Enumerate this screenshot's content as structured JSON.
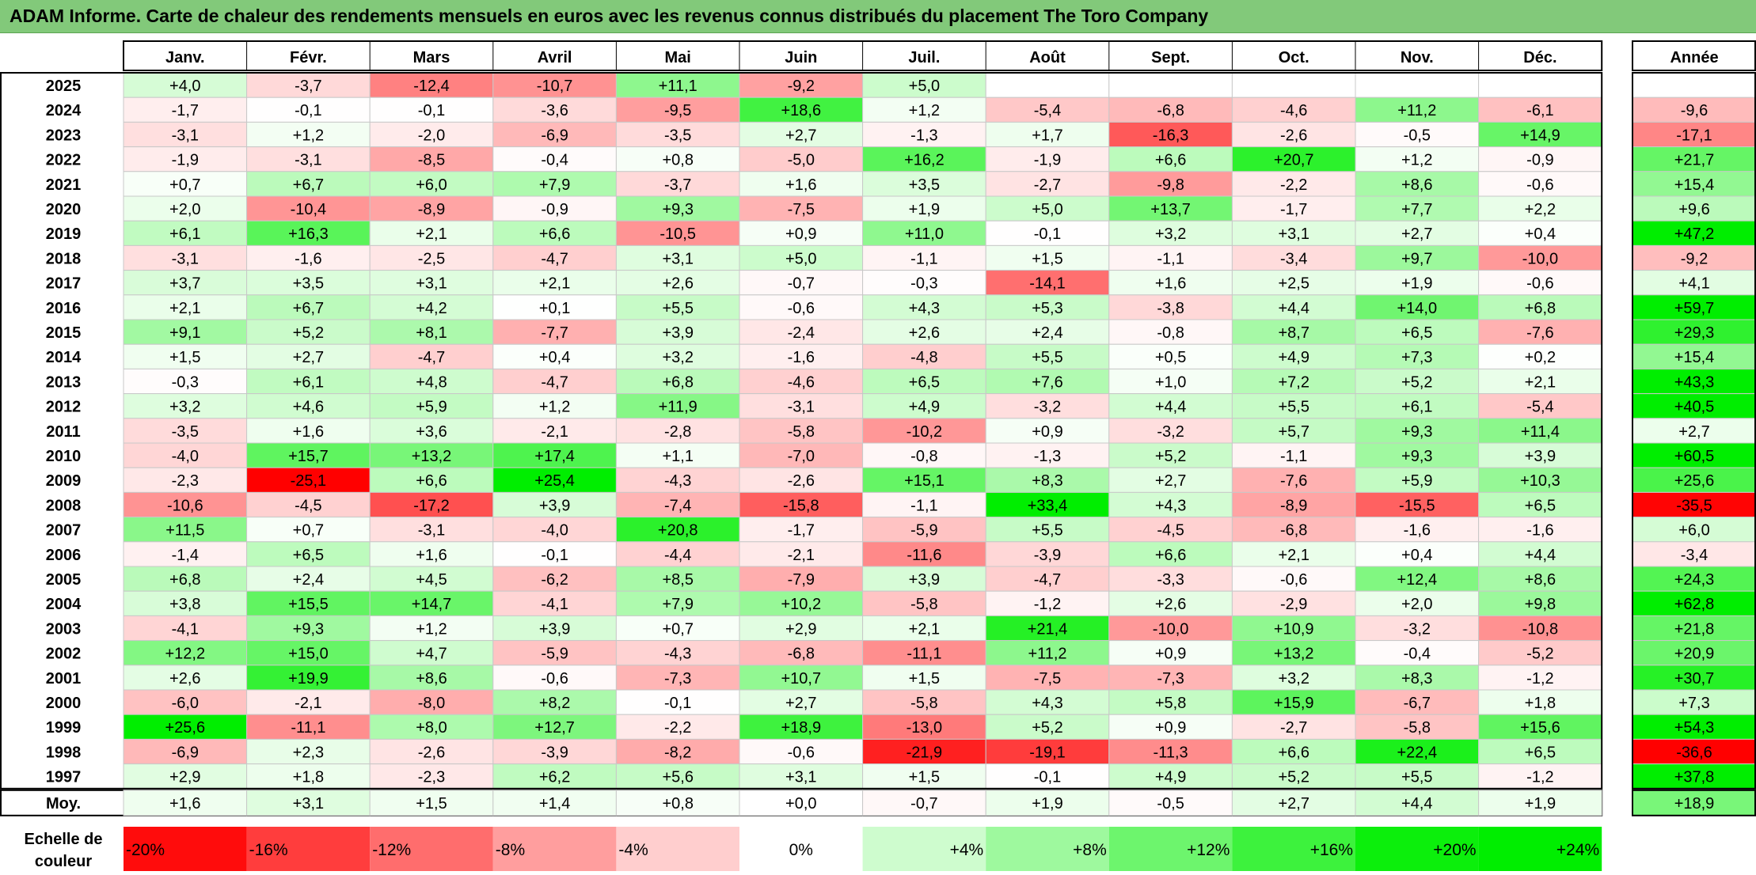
{
  "title": "ADAM Informe. Carte de chaleur des rendements mensuels en euros avec les revenus connus distribués du placement The Toro Company",
  "chart_data": {
    "type": "heatmap",
    "title": "ADAM Informe. Carte de chaleur des rendements mensuels en euros avec les revenus connus distribués du placement The Toro Company",
    "columns": [
      "Janv.",
      "Févr.",
      "Mars",
      "Avril",
      "Mai",
      "Juin",
      "Juil.",
      "Août",
      "Sept.",
      "Oct.",
      "Nov.",
      "Déc."
    ],
    "annual_header": "Année",
    "rows": [
      {
        "year": "2025",
        "values": [
          "+4,0",
          "-3,7",
          "-12,4",
          "-10,7",
          "+11,1",
          "-9,2",
          "+5,0",
          "",
          "",
          "",
          "",
          ""
        ],
        "annual": ""
      },
      {
        "year": "2024",
        "values": [
          "-1,7",
          "-0,1",
          "-0,1",
          "-3,6",
          "-9,5",
          "+18,6",
          "+1,2",
          "-5,4",
          "-6,8",
          "-4,6",
          "+11,2",
          "-6,1"
        ],
        "annual": "-9,6"
      },
      {
        "year": "2023",
        "values": [
          "-3,1",
          "+1,2",
          "-2,0",
          "-6,9",
          "-3,5",
          "+2,7",
          "-1,3",
          "+1,7",
          "-16,3",
          "-2,6",
          "-0,5",
          "+14,9"
        ],
        "annual": "-17,1"
      },
      {
        "year": "2022",
        "values": [
          "-1,9",
          "-3,1",
          "-8,5",
          "-0,4",
          "+0,8",
          "-5,0",
          "+16,2",
          "-1,9",
          "+6,6",
          "+20,7",
          "+1,2",
          "-0,9"
        ],
        "annual": "+21,7"
      },
      {
        "year": "2021",
        "values": [
          "+0,7",
          "+6,7",
          "+6,0",
          "+7,9",
          "-3,7",
          "+1,6",
          "+3,5",
          "-2,7",
          "-9,8",
          "-2,2",
          "+8,6",
          "-0,6"
        ],
        "annual": "+15,4"
      },
      {
        "year": "2020",
        "values": [
          "+2,0",
          "-10,4",
          "-8,9",
          "-0,9",
          "+9,3",
          "-7,5",
          "+1,9",
          "+5,0",
          "+13,7",
          "-1,7",
          "+7,7",
          "+2,2"
        ],
        "annual": "+9,6"
      },
      {
        "year": "2019",
        "values": [
          "+6,1",
          "+16,3",
          "+2,1",
          "+6,6",
          "-10,5",
          "+0,9",
          "+11,0",
          "-0,1",
          "+3,2",
          "+3,1",
          "+2,7",
          "+0,4"
        ],
        "annual": "+47,2"
      },
      {
        "year": "2018",
        "values": [
          "-3,1",
          "-1,6",
          "-2,5",
          "-4,7",
          "+3,1",
          "+5,0",
          "-1,1",
          "+1,5",
          "-1,1",
          "-3,4",
          "+9,7",
          "-10,0"
        ],
        "annual": "-9,2"
      },
      {
        "year": "2017",
        "values": [
          "+3,7",
          "+3,5",
          "+3,1",
          "+2,1",
          "+2,6",
          "-0,7",
          "-0,3",
          "-14,1",
          "+1,6",
          "+2,5",
          "+1,9",
          "-0,6"
        ],
        "annual": "+4,1"
      },
      {
        "year": "2016",
        "values": [
          "+2,1",
          "+6,7",
          "+4,2",
          "+0,1",
          "+5,5",
          "-0,6",
          "+4,3",
          "+5,3",
          "-3,8",
          "+4,4",
          "+14,0",
          "+6,8"
        ],
        "annual": "+59,7"
      },
      {
        "year": "2015",
        "values": [
          "+9,1",
          "+5,2",
          "+8,1",
          "-7,7",
          "+3,9",
          "-2,4",
          "+2,6",
          "+2,4",
          "-0,8",
          "+8,7",
          "+6,5",
          "-7,6"
        ],
        "annual": "+29,3"
      },
      {
        "year": "2014",
        "values": [
          "+1,5",
          "+2,7",
          "-4,7",
          "+0,4",
          "+3,2",
          "-1,6",
          "-4,8",
          "+5,5",
          "+0,5",
          "+4,9",
          "+7,3",
          "+0,2"
        ],
        "annual": "+15,4"
      },
      {
        "year": "2013",
        "values": [
          "-0,3",
          "+6,1",
          "+4,8",
          "-4,7",
          "+6,8",
          "-4,6",
          "+6,5",
          "+7,6",
          "+1,0",
          "+7,2",
          "+5,2",
          "+2,1"
        ],
        "annual": "+43,3"
      },
      {
        "year": "2012",
        "values": [
          "+3,2",
          "+4,6",
          "+5,9",
          "+1,2",
          "+11,9",
          "-3,1",
          "+4,9",
          "-3,2",
          "+4,4",
          "+5,5",
          "+6,1",
          "-5,4"
        ],
        "annual": "+40,5"
      },
      {
        "year": "2011",
        "values": [
          "-3,5",
          "+1,6",
          "+3,6",
          "-2,1",
          "-2,8",
          "-5,8",
          "-10,2",
          "+0,9",
          "-3,2",
          "+5,7",
          "+9,3",
          "+11,4"
        ],
        "annual": "+2,7"
      },
      {
        "year": "2010",
        "values": [
          "-4,0",
          "+15,7",
          "+13,2",
          "+17,4",
          "+1,1",
          "-7,0",
          "-0,8",
          "-1,3",
          "+5,2",
          "-1,1",
          "+9,3",
          "+3,9"
        ],
        "annual": "+60,5"
      },
      {
        "year": "2009",
        "values": [
          "-2,3",
          "-25,1",
          "+6,6",
          "+25,4",
          "-4,3",
          "-2,6",
          "+15,1",
          "+8,3",
          "+2,7",
          "-7,6",
          "+5,9",
          "+10,3"
        ],
        "annual": "+25,6"
      },
      {
        "year": "2008",
        "values": [
          "-10,6",
          "-4,5",
          "-17,2",
          "+3,9",
          "-7,4",
          "-15,8",
          "-1,1",
          "+33,4",
          "+4,3",
          "-8,9",
          "-15,5",
          "+6,5"
        ],
        "annual": "-35,5"
      },
      {
        "year": "2007",
        "values": [
          "+11,5",
          "+0,7",
          "-3,1",
          "-4,0",
          "+20,8",
          "-1,7",
          "-5,9",
          "+5,5",
          "-4,5",
          "-6,8",
          "-1,6",
          "-1,6"
        ],
        "annual": "+6,0"
      },
      {
        "year": "2006",
        "values": [
          "-1,4",
          "+6,5",
          "+1,6",
          "-0,1",
          "-4,4",
          "-2,1",
          "-11,6",
          "-3,9",
          "+6,6",
          "+2,1",
          "+0,4",
          "+4,4"
        ],
        "annual": "-3,4"
      },
      {
        "year": "2005",
        "values": [
          "+6,8",
          "+2,4",
          "+4,5",
          "-6,2",
          "+8,5",
          "-7,9",
          "+3,9",
          "-4,7",
          "-3,3",
          "-0,6",
          "+12,4",
          "+8,6"
        ],
        "annual": "+24,3"
      },
      {
        "year": "2004",
        "values": [
          "+3,8",
          "+15,5",
          "+14,7",
          "-4,1",
          "+7,9",
          "+10,2",
          "-5,8",
          "-1,2",
          "+2,6",
          "-2,9",
          "+2,0",
          "+9,8"
        ],
        "annual": "+62,8"
      },
      {
        "year": "2003",
        "values": [
          "-4,1",
          "+9,3",
          "+1,2",
          "+3,9",
          "+0,7",
          "+2,9",
          "+2,1",
          "+21,4",
          "-10,0",
          "+10,9",
          "-3,2",
          "-10,8"
        ],
        "annual": "+21,8"
      },
      {
        "year": "2002",
        "values": [
          "+12,2",
          "+15,0",
          "+4,7",
          "-5,9",
          "-4,3",
          "-6,8",
          "-11,1",
          "+11,2",
          "+0,9",
          "+13,2",
          "-0,4",
          "-5,2"
        ],
        "annual": "+20,9"
      },
      {
        "year": "2001",
        "values": [
          "+2,6",
          "+19,9",
          "+8,6",
          "-0,6",
          "-7,3",
          "+10,7",
          "+1,5",
          "-7,5",
          "-7,3",
          "+3,2",
          "+8,3",
          "-1,2"
        ],
        "annual": "+30,7"
      },
      {
        "year": "2000",
        "values": [
          "-6,0",
          "-2,1",
          "-8,0",
          "+8,2",
          "-0,1",
          "+2,7",
          "-5,8",
          "+4,3",
          "+5,8",
          "+15,9",
          "-6,7",
          "+1,8"
        ],
        "annual": "+7,3"
      },
      {
        "year": "1999",
        "values": [
          "+25,6",
          "-11,1",
          "+8,0",
          "+12,7",
          "-2,2",
          "+18,9",
          "-13,0",
          "+5,2",
          "+0,9",
          "-2,7",
          "-5,8",
          "+15,6"
        ],
        "annual": "+54,3"
      },
      {
        "year": "1998",
        "values": [
          "-6,9",
          "+2,3",
          "-2,6",
          "-3,9",
          "-8,2",
          "-0,6",
          "-21,9",
          "-19,1",
          "-11,3",
          "+6,6",
          "+22,4",
          "+6,5"
        ],
        "annual": "-36,6"
      },
      {
        "year": "1997",
        "values": [
          "+2,9",
          "+1,8",
          "-2,3",
          "+6,2",
          "+5,6",
          "+3,1",
          "+1,5",
          "-0,1",
          "+4,9",
          "+5,2",
          "+5,5",
          "-1,2"
        ],
        "annual": "+37,8"
      }
    ],
    "average": {
      "label": "Moy.",
      "values": [
        "+1,6",
        "+3,1",
        "+1,5",
        "+1,4",
        "+0,8",
        "+0,0",
        "-0,7",
        "+1,9",
        "-0,5",
        "+2,7",
        "+4,4",
        "+1,9"
      ],
      "annual": "+18,9"
    },
    "scale": {
      "label_line1": "Echelle de",
      "label_line2": "couleur",
      "labels": [
        "-20%",
        "-16%",
        "-12%",
        "-8%",
        "-4%",
        "0%",
        "+4%",
        "+8%",
        "+12%",
        "+16%",
        "+20%",
        "+24%"
      ]
    },
    "colors": {
      "negative": "#ff0000",
      "zero": "#ffffff",
      "positive": "#00ee00",
      "title_bar": "#82c97a"
    }
  }
}
